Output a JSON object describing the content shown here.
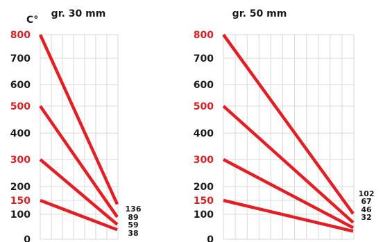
{
  "chart_data": [
    {
      "type": "line",
      "title": "gr. 30 mm",
      "ylabel": "C°",
      "ylim": [
        0,
        800
      ],
      "grid": true,
      "y_ticks": [
        {
          "label": "800",
          "color": "#d61f26"
        },
        {
          "label": "700",
          "color": "#1a1a1a"
        },
        {
          "label": "600",
          "color": "#1a1a1a"
        },
        {
          "label": "500",
          "color": "#d61f26"
        },
        {
          "label": "400",
          "color": "#1a1a1a"
        },
        {
          "label": "300",
          "color": "#d61f26"
        },
        {
          "label": "200",
          "color": "#1a1a1a"
        },
        {
          "label": "150",
          "color": "#d61f26"
        },
        {
          "label": "100",
          "color": "#1a1a1a"
        },
        {
          "label": "0",
          "color": "#1a1a1a"
        }
      ],
      "series": [
        {
          "start": 800,
          "end": 136,
          "end_label": "136"
        },
        {
          "start": 500,
          "end": 89,
          "end_label": "89"
        },
        {
          "start": 300,
          "end": 59,
          "end_label": "59"
        },
        {
          "start": 150,
          "end": 38,
          "end_label": "38"
        }
      ]
    },
    {
      "type": "line",
      "title": "gr. 50 mm",
      "ylim": [
        0,
        800
      ],
      "grid": true,
      "y_ticks": [
        {
          "label": "800",
          "color": "#d61f26"
        },
        {
          "label": "700",
          "color": "#1a1a1a"
        },
        {
          "label": "600",
          "color": "#1a1a1a"
        },
        {
          "label": "500",
          "color": "#d61f26"
        },
        {
          "label": "400",
          "color": "#1a1a1a"
        },
        {
          "label": "300",
          "color": "#d61f26"
        },
        {
          "label": "200",
          "color": "#1a1a1a"
        },
        {
          "label": "150",
          "color": "#d61f26"
        },
        {
          "label": "100",
          "color": "#1a1a1a"
        },
        {
          "label": "0",
          "color": "#1a1a1a"
        }
      ],
      "series": [
        {
          "start": 800,
          "end": 102,
          "end_label": "102"
        },
        {
          "start": 500,
          "end": 67,
          "end_label": "67"
        },
        {
          "start": 300,
          "end": 46,
          "end_label": "46"
        },
        {
          "start": 150,
          "end": 32,
          "end_label": "32"
        }
      ]
    }
  ],
  "colors": {
    "series": "#e31e24",
    "grid": "#d9d9d9",
    "text": "#1a1a1a",
    "accent_text": "#d61f26"
  }
}
